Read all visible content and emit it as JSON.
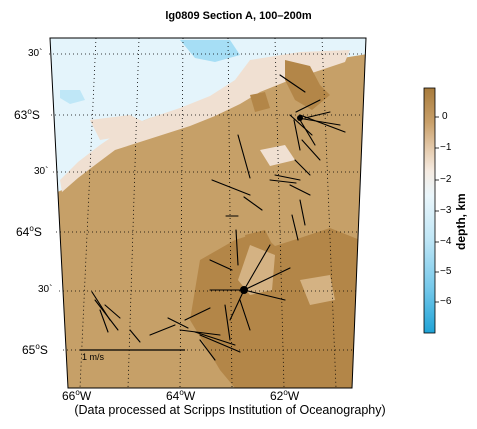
{
  "title": "lg0809 Section A, 100–200m",
  "footer": "(Data processed at Scripps Institution of Oceanography)",
  "map": {
    "lat_labels": [
      {
        "deg": "63",
        "hem": "S",
        "text_deg": "63",
        "unit": "o",
        "suffix": "S"
      },
      {
        "deg": "64",
        "hem": "S",
        "text_deg": "64",
        "unit": "o",
        "suffix": "S"
      },
      {
        "deg": "65",
        "hem": "S",
        "text_deg": "65",
        "unit": "o",
        "suffix": "S"
      }
    ],
    "lat_half_labels": [
      "30`",
      "30`",
      "30`",
      "30`"
    ],
    "lon_labels": [
      {
        "deg": "66",
        "suffix": "W"
      },
      {
        "deg": "64",
        "suffix": "W"
      },
      {
        "deg": "62",
        "suffix": "W"
      }
    ],
    "scale_label": "1 m/s"
  },
  "colorbar": {
    "title": "depth, km",
    "ticks": [
      "0",
      "−1",
      "−2",
      "−3",
      "−4",
      "−5",
      "−6"
    ],
    "colors": {
      "top": "#a77b3c",
      "land": "#c9a06a",
      "shelf_light": "#efdccc",
      "pale_blue": "#dff1f8",
      "mid_blue": "#8fd3f0",
      "deep": "#1fa3d6"
    }
  },
  "colors": {
    "land": "#c6a068",
    "land_dark": "#b38648",
    "land_pale": "#f0e0d2",
    "sea_light": "#e6f4fa",
    "sea_blue": "#9fdcf5",
    "vector": "#000000"
  }
}
